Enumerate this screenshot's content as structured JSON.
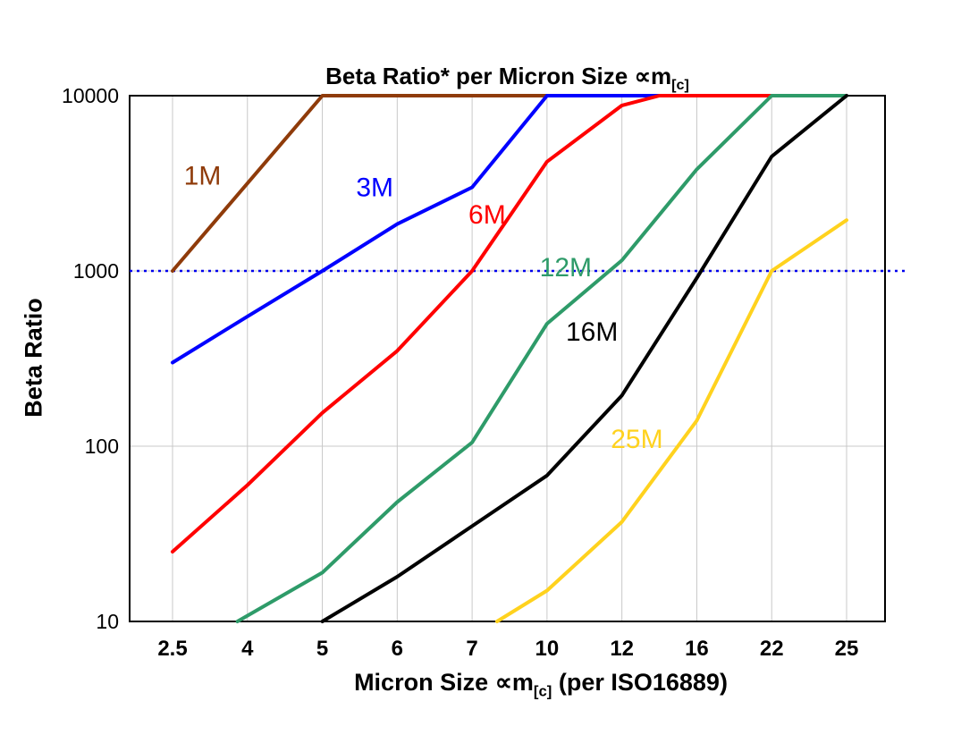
{
  "title": {
    "main": "Beta Ratio* per Micron Size ",
    "symbol": "∝m",
    "subscript": "[c]"
  },
  "axes": {
    "y_label": "Beta Ratio",
    "x_label_prefix": "Micron Size ",
    "x_label_symbol": "∝m",
    "x_label_subscript": "[c]",
    "x_label_suffix": " (per ISO16889)",
    "y_ticks": [
      10,
      100,
      1000,
      10000
    ],
    "x_ticks": [
      "2.5",
      "4",
      "5",
      "6",
      "7",
      "10",
      "12",
      "16",
      "22",
      "25"
    ]
  },
  "chart_data": {
    "type": "line",
    "x_scale": "categorical",
    "y_scale": "log",
    "ylim": [
      10,
      10000
    ],
    "grid": true,
    "grid_color": "#c8c8c8",
    "border_color": "#000000",
    "categories": [
      2.5,
      4,
      5,
      6,
      7,
      10,
      12,
      16,
      22,
      25
    ],
    "reference_line": {
      "y": 1000,
      "color": "#0000ee",
      "style": "dotted"
    },
    "series": [
      {
        "name": "1M",
        "color": "#8f3b0a",
        "points": [
          [
            2.5,
            1000
          ],
          [
            5,
            10000
          ],
          [
            10,
            10000
          ]
        ]
      },
      {
        "name": "3M",
        "color": "#0000ff",
        "points": [
          [
            2.5,
            300
          ],
          [
            4,
            550
          ],
          [
            5,
            1000
          ],
          [
            6,
            1850
          ],
          [
            7,
            3000
          ],
          [
            10,
            10000
          ],
          [
            14,
            10000
          ]
        ]
      },
      {
        "name": "6M",
        "color": "#ff0000",
        "points": [
          [
            2.5,
            25
          ],
          [
            4,
            60
          ],
          [
            5,
            155
          ],
          [
            6,
            350
          ],
          [
            7,
            1000
          ],
          [
            10,
            4200
          ],
          [
            12,
            8800
          ],
          [
            14,
            10000
          ],
          [
            22,
            10000
          ]
        ]
      },
      {
        "name": "12M",
        "color": "#2e9b69",
        "points": [
          [
            3.8,
            10
          ],
          [
            5,
            19
          ],
          [
            6,
            48
          ],
          [
            7,
            105
          ],
          [
            10,
            500
          ],
          [
            12,
            1150
          ],
          [
            16,
            3800
          ],
          [
            22,
            10000
          ],
          [
            25,
            10000
          ]
        ]
      },
      {
        "name": "16M",
        "color": "#000000",
        "points": [
          [
            5,
            10
          ],
          [
            6,
            18
          ],
          [
            7,
            35
          ],
          [
            10,
            68
          ],
          [
            12,
            195
          ],
          [
            16,
            910
          ],
          [
            22,
            4500
          ],
          [
            25,
            10000
          ]
        ]
      },
      {
        "name": "25M",
        "color": "#ffd21e",
        "points": [
          [
            8,
            10
          ],
          [
            10,
            15
          ],
          [
            12,
            37
          ],
          [
            16,
            140
          ],
          [
            22,
            1000
          ],
          [
            25,
            1950
          ]
        ]
      }
    ],
    "labels": [
      {
        "text": "1M",
        "x": 3.1,
        "y": 3500,
        "color": "#8f3b0a"
      },
      {
        "text": "3M",
        "x": 5.7,
        "y": 3000,
        "color": "#0000ff"
      },
      {
        "text": "6M",
        "x": 7.6,
        "y": 2100,
        "color": "#ff0000"
      },
      {
        "text": "12M",
        "x": 10.5,
        "y": 1050,
        "color": "#2e9b69"
      },
      {
        "text": "16M",
        "x": 11.2,
        "y": 450,
        "color": "#000000"
      },
      {
        "text": "25M",
        "x": 12.8,
        "y": 110,
        "color": "#ffd21e"
      }
    ]
  }
}
